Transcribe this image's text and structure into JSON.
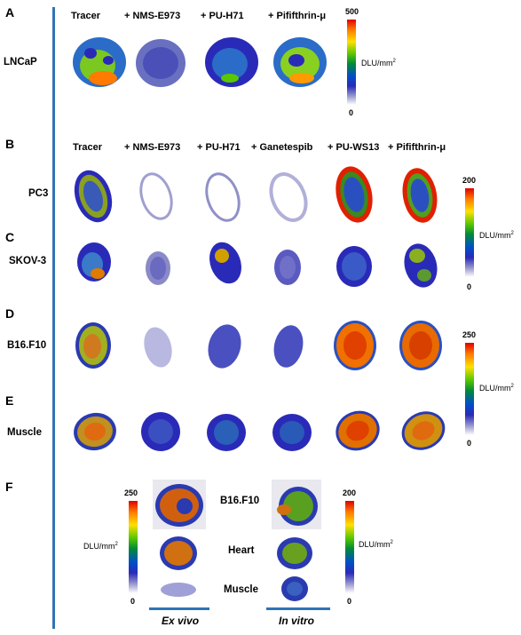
{
  "panelA": {
    "letter": "A",
    "columns": [
      "Tracer",
      "+ NMS-E973",
      "+ PU-H71",
      "+ Pififthrin-μ"
    ],
    "row_label": "LNCaP",
    "scale_max": "500",
    "scale_min": "0",
    "unit": "DLU/mm",
    "unit_sup": "2"
  },
  "panelB": {
    "letter": "B",
    "columns": [
      "Tracer",
      "+ NMS-E973",
      "+ PU-H71",
      "+ Ganetespib",
      "+ PU-WS13",
      "+ Pififthrin-μ"
    ],
    "row_label": "PC3"
  },
  "panelC": {
    "letter": "C",
    "row_label": "SKOV-3"
  },
  "scaleBC": {
    "max": "200",
    "min": "0",
    "unit": "DLU/mm",
    "unit_sup": "2"
  },
  "panelD": {
    "letter": "D",
    "row_label": "B16.F10"
  },
  "panelE": {
    "letter": "E",
    "row_label": "Muscle"
  },
  "scaleDE": {
    "max": "250",
    "min": "0",
    "unit": "DLU/mm",
    "unit_sup": "2"
  },
  "panelF": {
    "letter": "F",
    "rows": [
      "B16.F10",
      "Heart",
      "Muscle"
    ],
    "left_scale_max": "250",
    "left_scale_min": "0",
    "right_scale_max": "200",
    "right_scale_min": "0",
    "unit": "DLU/mm",
    "unit_sup": "2",
    "ex_vivo": "Ex vivo",
    "in_vitro": "In vitro"
  },
  "colors": {
    "divider": "#2e74b5",
    "high": "#e00000",
    "mid": "#5ac800",
    "low": "#2a2ab8"
  }
}
